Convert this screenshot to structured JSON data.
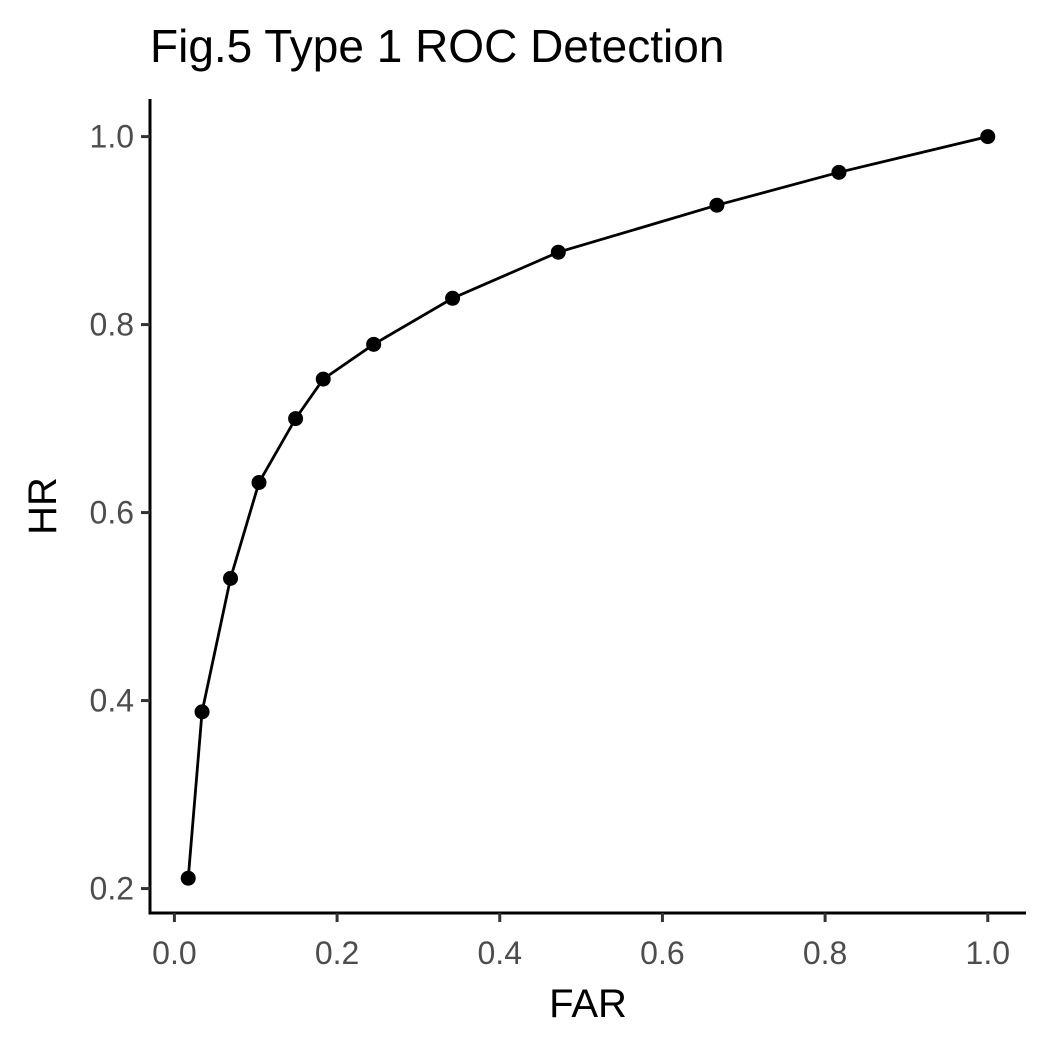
{
  "chart_data": {
    "type": "line",
    "title": "Fig.5 Type 1 ROC Detection",
    "xlabel": "FAR",
    "ylabel": "HR",
    "xlim": [
      -0.03,
      1.047
    ],
    "ylim": [
      0.174,
      1.04
    ],
    "x_ticks": [
      0.0,
      0.2,
      0.4,
      0.6,
      0.8,
      1.0
    ],
    "x_tick_labels": [
      "0.0",
      "0.2",
      "0.4",
      "0.6",
      "0.8",
      "1.0"
    ],
    "y_ticks": [
      0.2,
      0.4,
      0.6,
      0.8,
      1.0
    ],
    "y_tick_labels": [
      "0.2",
      "0.4",
      "0.6",
      "0.8",
      "1.0"
    ],
    "grid": false,
    "legend": "none",
    "series": [
      {
        "markers": true,
        "color": "#000000",
        "x": [
          0.017,
          0.034,
          0.069,
          0.104,
          0.149,
          0.183,
          0.245,
          0.342,
          0.472,
          0.667,
          0.817,
          1.0
        ],
        "y": [
          0.211,
          0.388,
          0.53,
          0.632,
          0.7,
          0.742,
          0.779,
          0.828,
          0.877,
          0.927,
          0.962,
          1.0
        ]
      }
    ]
  }
}
